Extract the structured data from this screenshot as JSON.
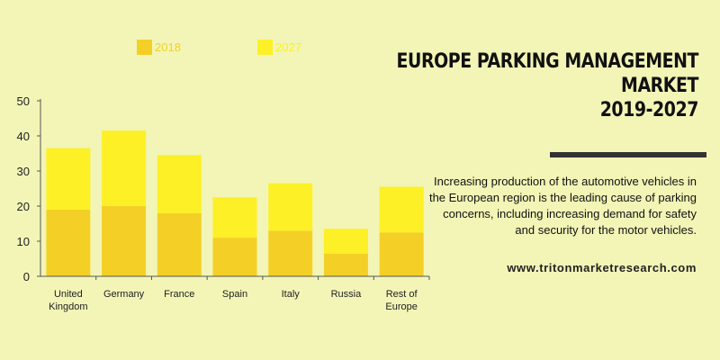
{
  "chart_data": {
    "type": "bar",
    "stacked": true,
    "title": "EUROPE PARKING MANAGEMENT MARKET",
    "subtitle": "2019-2027",
    "categories": [
      [
        "United",
        "Kingdom"
      ],
      [
        "Germany"
      ],
      [
        "France"
      ],
      [
        "Spain"
      ],
      [
        "Italy"
      ],
      [
        "Russia"
      ],
      [
        "Rest of",
        "Europe"
      ]
    ],
    "series": [
      {
        "name": "2018",
        "color": "#f4d027",
        "values": [
          19,
          20,
          18,
          11,
          13,
          6.5,
          12.5
        ]
      },
      {
        "name": "2027",
        "color": "#fdf026",
        "values": [
          17.5,
          21.5,
          16.5,
          11.5,
          13.5,
          7,
          13
        ]
      }
    ],
    "ylim": [
      0,
      50
    ],
    "yticks": [
      0,
      10,
      20,
      30,
      40,
      50
    ],
    "xlabel": "",
    "ylabel": "",
    "grid": false,
    "legend_position": "top"
  },
  "text": {
    "title_line1": "EUROPE PARKING MANAGEMENT MARKET",
    "title_line2": "2019-2027",
    "description": "Increasing production of the automotive vehicles in the European region is the leading cause of parking concerns, including increasing demand for safety and security for the motor vehicles.",
    "website": "www.tritonmarketresearch.com"
  },
  "colors": {
    "background": "#f2f5b6",
    "axis": "#555555"
  }
}
